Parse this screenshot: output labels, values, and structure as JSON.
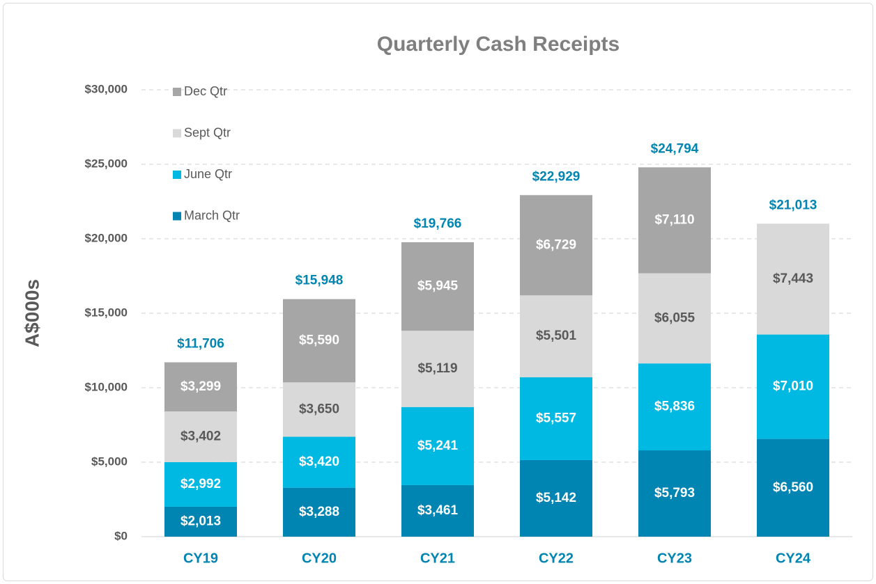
{
  "chart_data": {
    "type": "stacked_bar",
    "title": "Quarterly Cash Receipts",
    "y_label": "A$000s",
    "categories": [
      "CY19",
      "CY20",
      "CY21",
      "CY22",
      "CY23",
      "CY24"
    ],
    "series": [
      {
        "name": "March Qtr",
        "color": "#0085b2",
        "label_color": "#ffffff",
        "values": [
          2013,
          3288,
          3461,
          5142,
          5793,
          6560
        ],
        "value_labels": [
          "$2,013",
          "$3,288",
          "$3,461",
          "$5,142",
          "$5,793",
          "$6,560"
        ]
      },
      {
        "name": "June Qtr",
        "color": "#00b9e2",
        "label_color": "#ffffff",
        "values": [
          2992,
          3420,
          5241,
          5557,
          5836,
          7010
        ],
        "value_labels": [
          "$2,992",
          "$3,420",
          "$5,241",
          "$5,557",
          "$5,836",
          "$7,010"
        ]
      },
      {
        "name": "Sept Qtr",
        "color": "#d9d9d9",
        "label_color": "#595959",
        "values": [
          3402,
          3650,
          5119,
          5501,
          6055,
          7443
        ],
        "value_labels": [
          "$3,402",
          "$3,650",
          "$5,119",
          "$5,501",
          "$6,055",
          "$7,443"
        ]
      },
      {
        "name": "Dec Qtr",
        "color": "#a6a6a6",
        "label_color": "#ffffff",
        "values": [
          3299,
          5590,
          5945,
          6729,
          7110,
          null
        ],
        "value_labels": [
          "$3,299",
          "$5,590",
          "$5,945",
          "$6,729",
          "$7,110",
          null
        ]
      }
    ],
    "totals": [
      11706,
      15948,
      19766,
      22929,
      24794,
      21013
    ],
    "total_labels": [
      "$11,706",
      "$15,948",
      "$19,766",
      "$22,929",
      "$24,794",
      "$21,013"
    ],
    "total_color": "#0085b2",
    "ylim": [
      0,
      30000
    ],
    "yticks": [
      {
        "value": 0,
        "label": "$0"
      },
      {
        "value": 5000,
        "label": "$5,000"
      },
      {
        "value": 10000,
        "label": "$10,000"
      },
      {
        "value": 15000,
        "label": "$15,000"
      },
      {
        "value": 20000,
        "label": "$20,000"
      },
      {
        "value": 25000,
        "label": "$25,000"
      },
      {
        "value": 30000,
        "label": "$30,000"
      }
    ],
    "grid": true,
    "legend": "top-left"
  }
}
